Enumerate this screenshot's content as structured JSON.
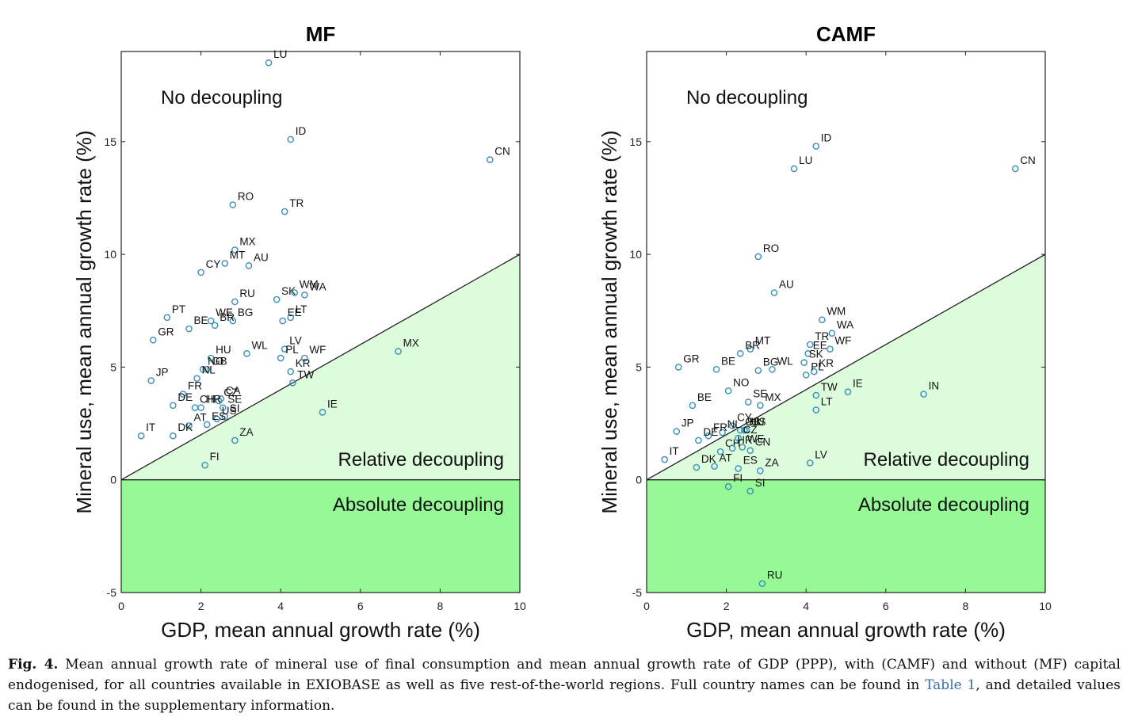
{
  "chart_data": [
    {
      "type": "scatter",
      "title": "MF",
      "xlabel": "GDP, mean annual growth rate (%)",
      "ylabel": "Mineral use, mean annual growth rate (%)",
      "xlim": [
        0,
        10
      ],
      "ylim": [
        -5,
        19
      ],
      "xticks": [
        0,
        2,
        4,
        6,
        8,
        10
      ],
      "yticks": [
        -5,
        0,
        5,
        10,
        15
      ],
      "regions": [
        "No decoupling",
        "Relative decoupling",
        "Absolute decoupling"
      ],
      "points": [
        {
          "label": "LU",
          "x": 3.7,
          "y": 18.5
        },
        {
          "label": "ID",
          "x": 4.25,
          "y": 15.1
        },
        {
          "label": "CN",
          "x": 9.25,
          "y": 14.2
        },
        {
          "label": "RO",
          "x": 2.8,
          "y": 12.2
        },
        {
          "label": "TR",
          "x": 4.1,
          "y": 11.9
        },
        {
          "label": "MX",
          "x": 2.85,
          "y": 10.2
        },
        {
          "label": "MT",
          "x": 2.6,
          "y": 9.6
        },
        {
          "label": "AU",
          "x": 3.2,
          "y": 9.5
        },
        {
          "label": "CY",
          "x": 2.0,
          "y": 9.2
        },
        {
          "label": "RU",
          "x": 2.85,
          "y": 7.9
        },
        {
          "label": "SK",
          "x": 3.9,
          "y": 8.0
        },
        {
          "label": "WM",
          "x": 4.35,
          "y": 8.3
        },
        {
          "label": "WA",
          "x": 4.6,
          "y": 8.2
        },
        {
          "label": "PT",
          "x": 1.15,
          "y": 7.2
        },
        {
          "label": "WE",
          "x": 2.25,
          "y": 7.05
        },
        {
          "label": "BG",
          "x": 2.8,
          "y": 7.05
        },
        {
          "label": "EE",
          "x": 4.05,
          "y": 7.05
        },
        {
          "label": "LT",
          "x": 4.25,
          "y": 7.2
        },
        {
          "label": "BE",
          "x": 1.7,
          "y": 6.7
        },
        {
          "label": "BR",
          "x": 2.35,
          "y": 6.85
        },
        {
          "label": "GR",
          "x": 0.8,
          "y": 6.2
        },
        {
          "label": "LV",
          "x": 4.1,
          "y": 5.8
        },
        {
          "label": "WL",
          "x": 3.15,
          "y": 5.6
        },
        {
          "label": "WF",
          "x": 4.6,
          "y": 5.4
        },
        {
          "label": "MX",
          "x": 6.95,
          "y": 5.7
        },
        {
          "label": "GB",
          "x": 2.15,
          "y": 4.9
        },
        {
          "label": "HU",
          "x": 2.25,
          "y": 5.4
        },
        {
          "label": "PL",
          "x": 4.0,
          "y": 5.4
        },
        {
          "label": "NO",
          "x": 2.05,
          "y": 4.9
        },
        {
          "label": "NL",
          "x": 1.9,
          "y": 4.5
        },
        {
          "label": "KR",
          "x": 4.25,
          "y": 4.8
        },
        {
          "label": "JP",
          "x": 0.75,
          "y": 4.4
        },
        {
          "label": "CZ",
          "x": 2.45,
          "y": 3.5
        },
        {
          "label": "CA",
          "x": 2.5,
          "y": 3.6
        },
        {
          "label": "TW",
          "x": 4.3,
          "y": 4.3
        },
        {
          "label": "FR",
          "x": 1.55,
          "y": 3.8
        },
        {
          "label": "HR",
          "x": 2.0,
          "y": 3.2
        },
        {
          "label": "SE",
          "x": 2.55,
          "y": 3.2
        },
        {
          "label": "DE",
          "x": 1.3,
          "y": 3.3
        },
        {
          "label": "CH",
          "x": 1.85,
          "y": 3.2
        },
        {
          "label": "SI",
          "x": 2.6,
          "y": 2.8
        },
        {
          "label": "IE",
          "x": 5.05,
          "y": 3.0
        },
        {
          "label": "US",
          "x": 2.4,
          "y": 2.7
        },
        {
          "label": "AT",
          "x": 1.7,
          "y": 2.4
        },
        {
          "label": "ES",
          "x": 2.15,
          "y": 2.45
        },
        {
          "label": "IT",
          "x": 0.5,
          "y": 1.95
        },
        {
          "label": "DK",
          "x": 1.3,
          "y": 1.95
        },
        {
          "label": "ZA",
          "x": 2.85,
          "y": 1.75
        },
        {
          "label": "FI",
          "x": 2.1,
          "y": 0.65
        }
      ]
    },
    {
      "type": "scatter",
      "title": "CAMF",
      "xlabel": "GDP, mean annual growth rate (%)",
      "ylabel": "Mineral use, mean annual growth rate (%)",
      "xlim": [
        0,
        10
      ],
      "ylim": [
        -5,
        19
      ],
      "xticks": [
        0,
        2,
        4,
        6,
        8,
        10
      ],
      "yticks": [
        -5,
        0,
        5,
        10,
        15
      ],
      "regions": [
        "No decoupling",
        "Relative decoupling",
        "Absolute decoupling"
      ],
      "points": [
        {
          "label": "ID",
          "x": 4.25,
          "y": 14.8
        },
        {
          "label": "LU",
          "x": 3.7,
          "y": 13.8
        },
        {
          "label": "CN",
          "x": 9.25,
          "y": 13.8
        },
        {
          "label": "RO",
          "x": 2.8,
          "y": 9.9
        },
        {
          "label": "AU",
          "x": 3.2,
          "y": 8.3
        },
        {
          "label": "WM",
          "x": 4.4,
          "y": 7.1
        },
        {
          "label": "WA",
          "x": 4.65,
          "y": 6.5
        },
        {
          "label": "TR",
          "x": 4.1,
          "y": 6.0
        },
        {
          "label": "MT",
          "x": 2.6,
          "y": 5.8
        },
        {
          "label": "BR",
          "x": 2.35,
          "y": 5.6
        },
        {
          "label": "EE",
          "x": 4.05,
          "y": 5.6
        },
        {
          "label": "WF",
          "x": 4.6,
          "y": 5.8
        },
        {
          "label": "GR",
          "x": 0.8,
          "y": 5.0
        },
        {
          "label": "BE",
          "x": 1.75,
          "y": 4.9
        },
        {
          "label": "WL",
          "x": 3.15,
          "y": 4.9
        },
        {
          "label": "SK",
          "x": 3.95,
          "y": 5.2
        },
        {
          "label": "BG",
          "x": 2.8,
          "y": 4.85
        },
        {
          "label": "KR",
          "x": 4.2,
          "y": 4.8
        },
        {
          "label": "PL",
          "x": 4.0,
          "y": 4.65
        },
        {
          "label": "NO",
          "x": 2.05,
          "y": 3.95
        },
        {
          "label": "SE",
          "x": 2.55,
          "y": 3.45
        },
        {
          "label": "MX",
          "x": 2.85,
          "y": 3.3
        },
        {
          "label": "TW",
          "x": 4.25,
          "y": 3.75
        },
        {
          "label": "IE",
          "x": 5.05,
          "y": 3.9
        },
        {
          "label": "IN",
          "x": 6.95,
          "y": 3.8
        },
        {
          "label": "BE",
          "x": 1.15,
          "y": 3.3
        },
        {
          "label": "LT",
          "x": 4.25,
          "y": 3.1
        },
        {
          "label": "CY",
          "x": 2.15,
          "y": 2.4
        },
        {
          "label": "GB",
          "x": 2.35,
          "y": 2.2
        },
        {
          "label": "HU",
          "x": 2.45,
          "y": 2.2
        },
        {
          "label": "US",
          "x": 2.5,
          "y": 2.2
        },
        {
          "label": "NL",
          "x": 1.9,
          "y": 2.1
        },
        {
          "label": "JP",
          "x": 0.75,
          "y": 2.15
        },
        {
          "label": "FR",
          "x": 1.55,
          "y": 1.95
        },
        {
          "label": "CZ",
          "x": 2.3,
          "y": 1.85
        },
        {
          "label": "DE",
          "x": 1.3,
          "y": 1.75
        },
        {
          "label": "WE",
          "x": 2.4,
          "y": 1.45
        },
        {
          "label": "CH",
          "x": 1.85,
          "y": 1.25
        },
        {
          "label": "HR",
          "x": 2.15,
          "y": 1.4
        },
        {
          "label": "CN",
          "x": 2.6,
          "y": 1.3
        },
        {
          "label": "IT",
          "x": 0.45,
          "y": 0.9
        },
        {
          "label": "DK",
          "x": 1.25,
          "y": 0.55
        },
        {
          "label": "AT",
          "x": 1.7,
          "y": 0.6
        },
        {
          "label": "ES",
          "x": 2.3,
          "y": 0.5
        },
        {
          "label": "ZA",
          "x": 2.85,
          "y": 0.4
        },
        {
          "label": "LV",
          "x": 4.1,
          "y": 0.75
        },
        {
          "label": "FI",
          "x": 2.05,
          "y": -0.3
        },
        {
          "label": "SI",
          "x": 2.6,
          "y": -0.5
        },
        {
          "label": "RU",
          "x": 2.9,
          "y": -4.6
        }
      ]
    }
  ],
  "caption": {
    "label": "Fig. 4.",
    "text_before": " Mean annual growth rate of mineral use of final consumption and mean annual growth rate of GDP (PPP), with (CAMF) and without (MF) capital endogenised, for all countries available in EXIOBASE as well as five rest-of-the-world regions. Full country names can be found in ",
    "link": "Table 1",
    "text_after": ", and detailed values can be found in the supplementary information."
  }
}
